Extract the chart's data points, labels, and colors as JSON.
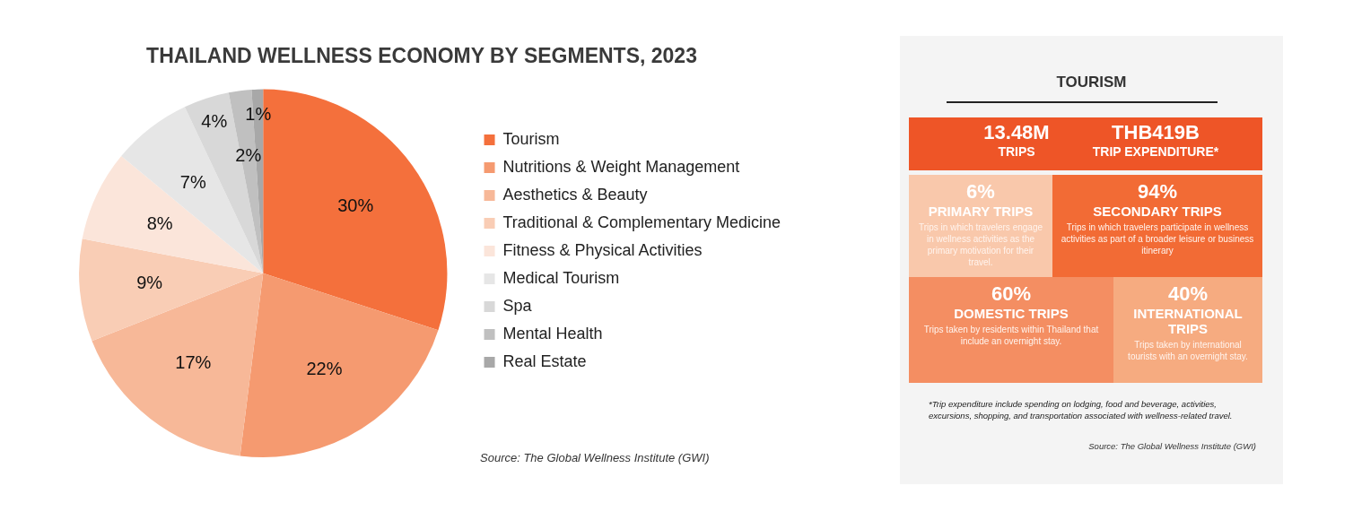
{
  "chart_data": [
    {
      "type": "pie",
      "title": "THAILAND WELLNESS ECONOMY BY SEGMENTS, 2023",
      "categories": [
        "Tourism",
        "Nutritions & Weight Management",
        "Aesthetics & Beauty",
        "Traditional & Complementary Medicine",
        "Fitness & Physical Activities",
        "Medical Tourism",
        "Spa",
        "Mental Health",
        "Real Estate"
      ],
      "values": [
        30,
        22,
        17,
        9,
        8,
        7,
        4,
        2,
        1
      ],
      "value_labels": [
        "30%",
        "22%",
        "17%",
        "9%",
        "8%",
        "7%",
        "4%",
        "2%",
        "1%"
      ],
      "colors": [
        "#f4703c",
        "#f59a70",
        "#f7b898",
        "#f9cdb5",
        "#fbe5da",
        "#e6e6e6",
        "#d8d8d8",
        "#c0c0c0",
        "#a8a8a8"
      ],
      "legend": "right",
      "annotations": [
        "Source: The Global Wellness Institute (GWI)"
      ]
    },
    {
      "type": "other",
      "title": "TOURISM",
      "annotations": [
        "13.48M",
        "TRIPS",
        "THB419B",
        "TRIP EXPENDITURE*",
        "6%",
        "PRIMARY TRIPS",
        "Trips in which travelers engage in wellness activities as the primary motivation for their travel.",
        "94%",
        "SECONDARY TRIPS",
        "Trips in which travelers participate in wellness activities as part of a broader leisure or business itinerary",
        "60%",
        "DOMESTIC TRIPS",
        "Trips taken by residents within Thailand that include an overnight stay.",
        "40%",
        "INTERNATIONAL TRIPS",
        "Trips taken by international tourists with an overnight stay.",
        "*Trip expenditure include spending on lodging, food and beverage, activities, excursions, shopping, and transportation associated with wellness-related travel.",
        "Source: The Global Wellness Institute (GWI)"
      ]
    }
  ]
}
